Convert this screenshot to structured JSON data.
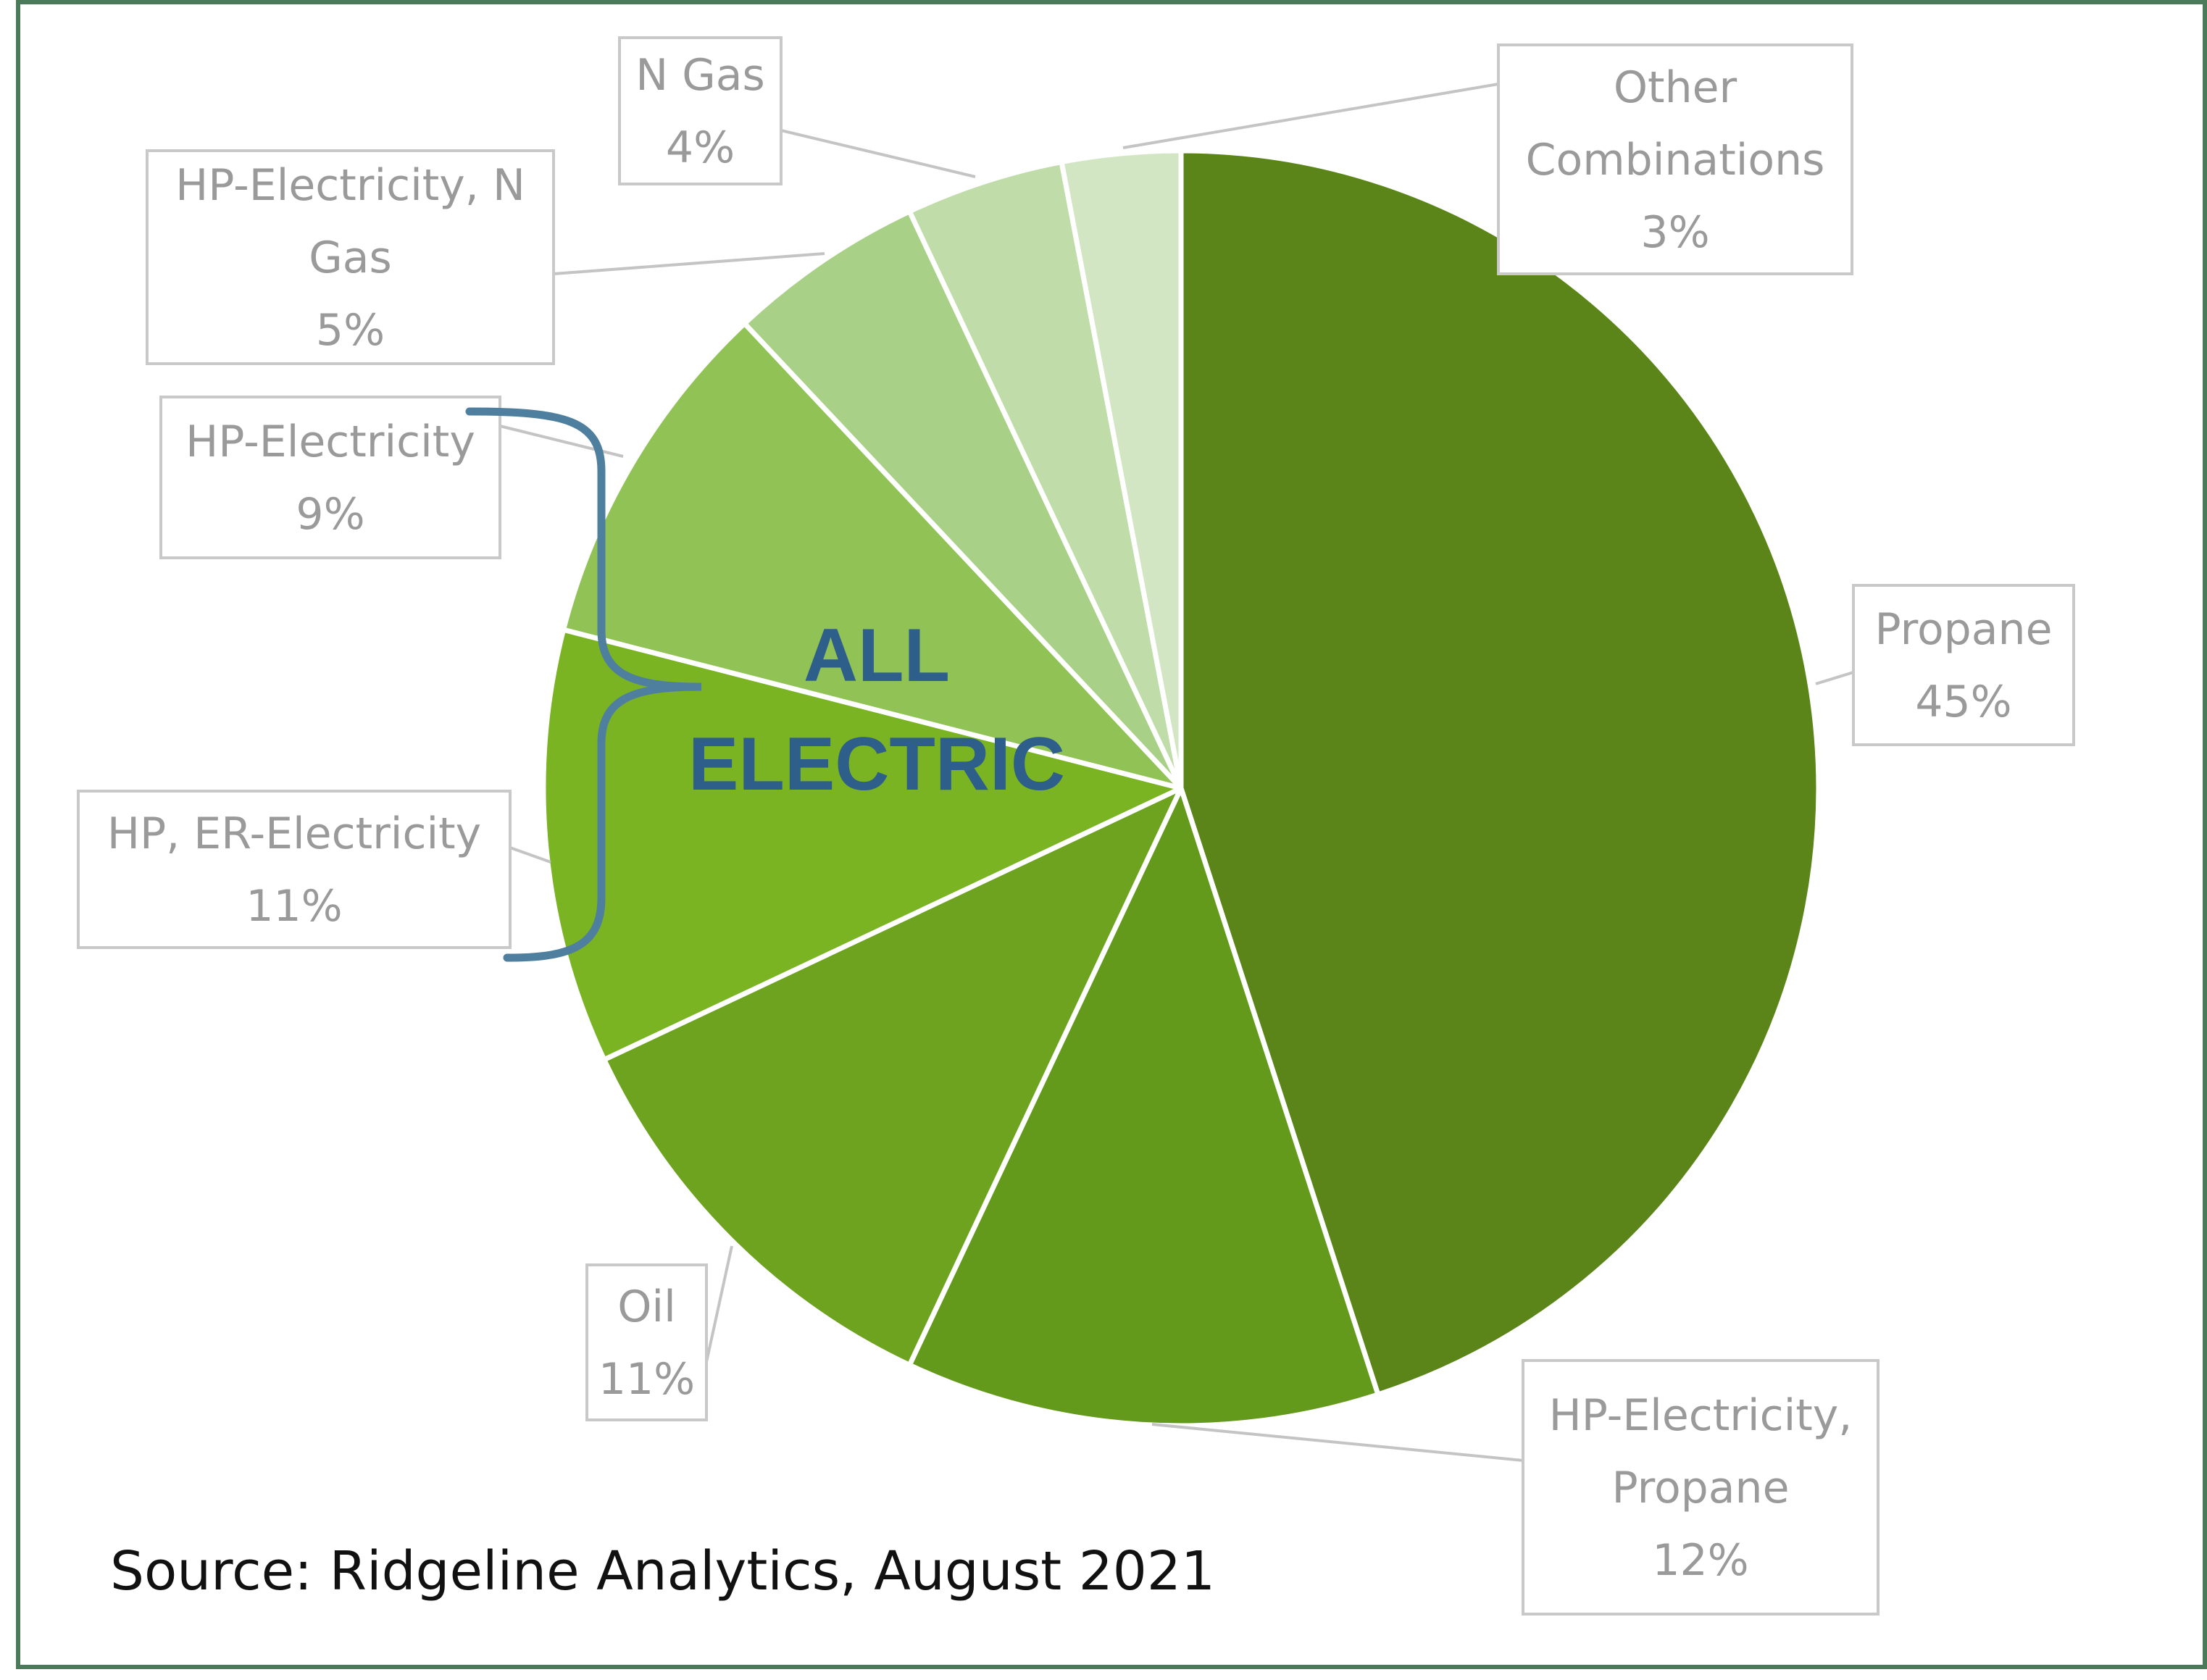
{
  "chart_data": {
    "type": "pie",
    "slices": [
      {
        "label": "Propane",
        "value": 45,
        "display": "45%",
        "color": "#5b8518"
      },
      {
        "label": "HP-Electricity, Propane",
        "value": 12,
        "display": "12%",
        "color": "#649a1c"
      },
      {
        "label": "Oil",
        "value": 11,
        "display": "11%",
        "color": "#6ea31f"
      },
      {
        "label": "HP, ER-Electricity",
        "value": 11,
        "display": "11%",
        "color": "#7bb422"
      },
      {
        "label": "HP-Electricity",
        "value": 9,
        "display": "9%",
        "color": "#90c256"
      },
      {
        "label": "HP-Electricity, N Gas",
        "value": 5,
        "display": "5%",
        "color": "#a9d087"
      },
      {
        "label": "N Gas",
        "value": 4,
        "display": "4%",
        "color": "#bfdca9"
      },
      {
        "label": "Other Combinations",
        "value": 3,
        "display": "3%",
        "color": "#d2e6c4"
      }
    ],
    "annotation": "ALL ELECTRIC",
    "annotation_color": "#2d5f8a",
    "frame_color": "#4a7a5a"
  },
  "source": "Source: Ridgeline Analytics, August 2021"
}
